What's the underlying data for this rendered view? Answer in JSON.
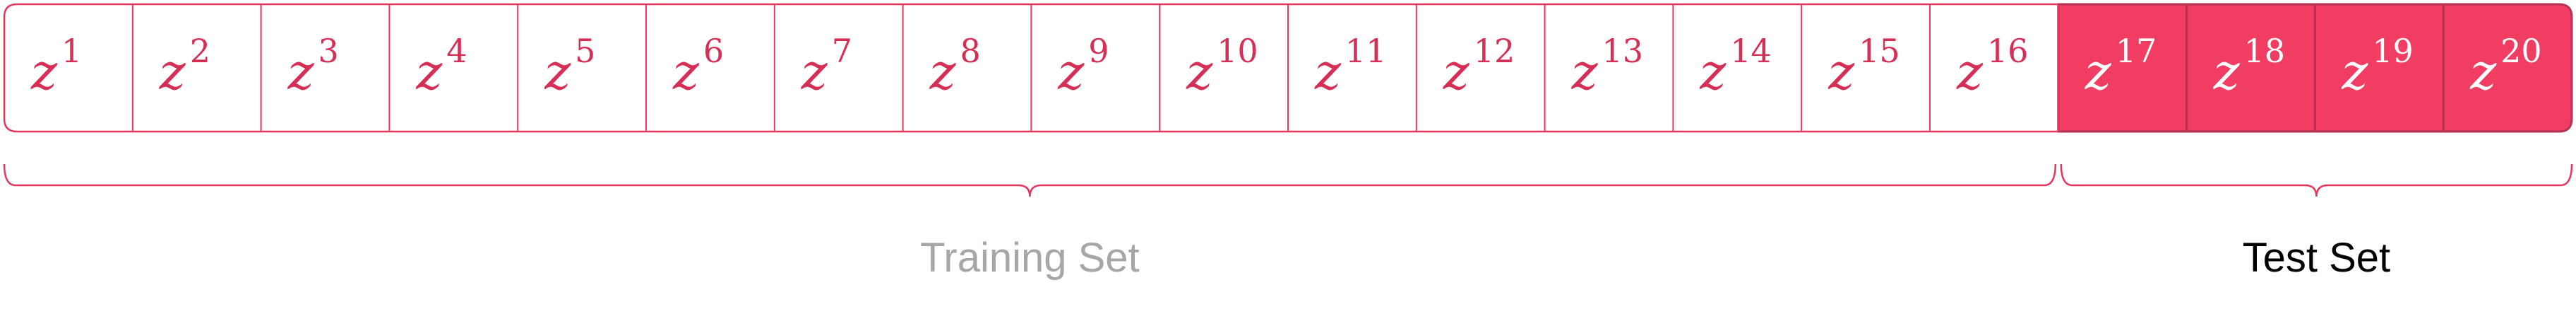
{
  "cells": [
    {
      "var": "z",
      "index": "1",
      "set": "train"
    },
    {
      "var": "z",
      "index": "2",
      "set": "train"
    },
    {
      "var": "z",
      "index": "3",
      "set": "train"
    },
    {
      "var": "z",
      "index": "4",
      "set": "train"
    },
    {
      "var": "z",
      "index": "5",
      "set": "train"
    },
    {
      "var": "z",
      "index": "6",
      "set": "train"
    },
    {
      "var": "z",
      "index": "7",
      "set": "train"
    },
    {
      "var": "z",
      "index": "8",
      "set": "train"
    },
    {
      "var": "z",
      "index": "9",
      "set": "train"
    },
    {
      "var": "z",
      "index": "10",
      "set": "train"
    },
    {
      "var": "z",
      "index": "11",
      "set": "train"
    },
    {
      "var": "z",
      "index": "12",
      "set": "train"
    },
    {
      "var": "z",
      "index": "13",
      "set": "train"
    },
    {
      "var": "z",
      "index": "14",
      "set": "train"
    },
    {
      "var": "z",
      "index": "15",
      "set": "train"
    },
    {
      "var": "z",
      "index": "16",
      "set": "train"
    },
    {
      "var": "z",
      "index": "17",
      "set": "test"
    },
    {
      "var": "z",
      "index": "18",
      "set": "test"
    },
    {
      "var": "z",
      "index": "19",
      "set": "test"
    },
    {
      "var": "z",
      "index": "20",
      "set": "test"
    }
  ],
  "labels": {
    "train": "Training Set",
    "test": "Test Set"
  },
  "colors": {
    "accent": "#e8375e",
    "test_fill": "#f23d62",
    "test_border": "#b3324f",
    "train_text": "#d62e55",
    "test_text": "#ffffff",
    "train_label": "#a6a6a6",
    "test_label": "#000000",
    "background": "#ffffff"
  }
}
